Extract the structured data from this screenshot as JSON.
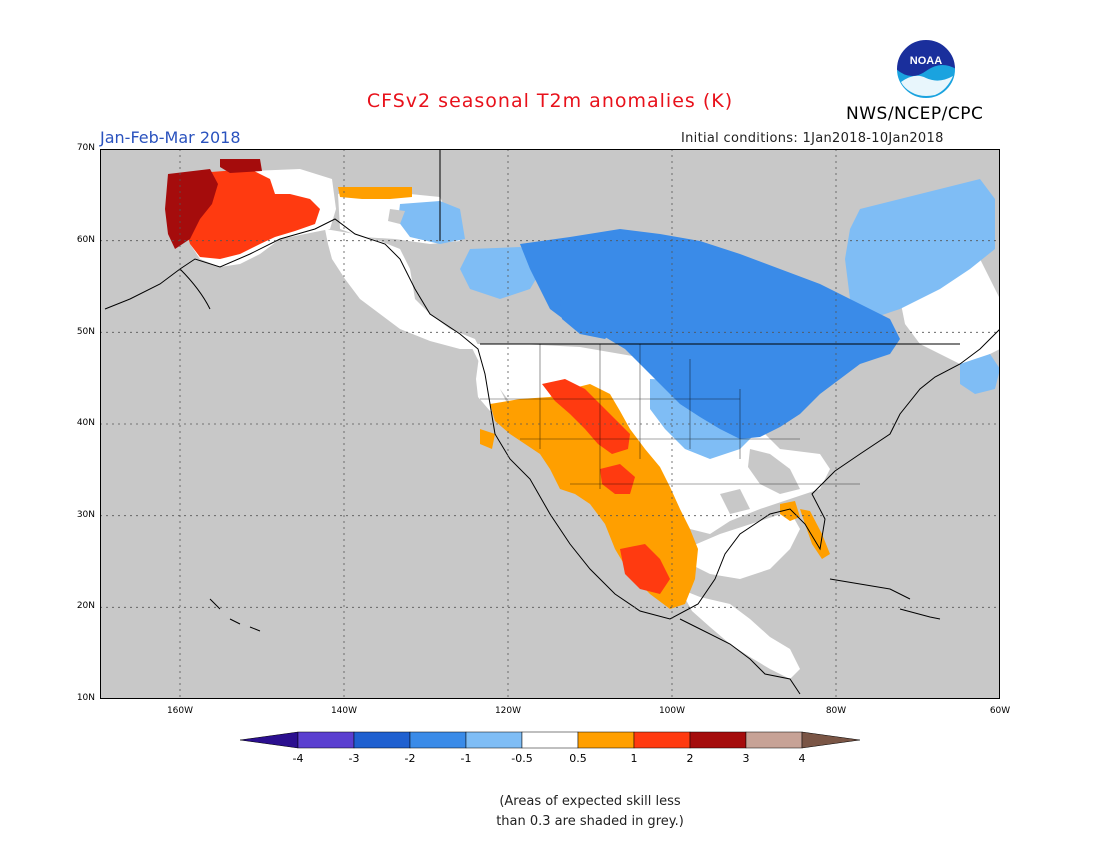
{
  "header": {
    "title": "CFSv2 seasonal T2m anomalies (K)",
    "period": "Jan-Feb-Mar 2018",
    "initial_conditions": "Initial conditions: 1Jan2018-10Jan2018",
    "agency": "NWS/NCEP/CPC",
    "logo_text": "NOAA"
  },
  "map": {
    "region": "North America",
    "lat_labels": [
      "70N",
      "60N",
      "50N",
      "40N",
      "30N",
      "20N",
      "10N"
    ],
    "lon_labels": [
      "160W",
      "140W",
      "120W",
      "100W",
      "80W",
      "60W"
    ],
    "regions": [
      {
        "area": "Alaska west",
        "class": "2 to 3"
      },
      {
        "area": "Alaska central",
        "class": "1 to 2"
      },
      {
        "area": "Canada central",
        "class": "-2 to -1"
      },
      {
        "area": "Northern Plains / Great Lakes",
        "class": "-2 to -1"
      },
      {
        "area": "US Southwest / Rockies",
        "class": "0.5 to 1"
      },
      {
        "area": "Four Corners",
        "class": "1 to 2"
      },
      {
        "area": "Mexico west",
        "class": "0.5 to 1"
      },
      {
        "area": "Florida",
        "class": "0.5 to 1"
      }
    ]
  },
  "colorbar": {
    "labels": [
      "-4",
      "-3",
      "-2",
      "-1",
      "-0.5",
      "0.5",
      "1",
      "2",
      "3",
      "4"
    ],
    "colors": [
      "#2b0f8f",
      "#5a3fd0",
      "#1f60d0",
      "#3a8be8",
      "#7fbdf5",
      "#ffffff",
      "#ff9f00",
      "#ff3a10",
      "#a50c0c",
      "#c7a296",
      "#7a5545"
    ]
  },
  "note": {
    "line1": "(Areas of expected skill less",
    "line2": "than 0.3 are shaded in grey.)"
  },
  "colors": {
    "no_skill_grey": "#c8c8c8",
    "title_red": "#e8111b",
    "period_blue": "#2a52be"
  }
}
